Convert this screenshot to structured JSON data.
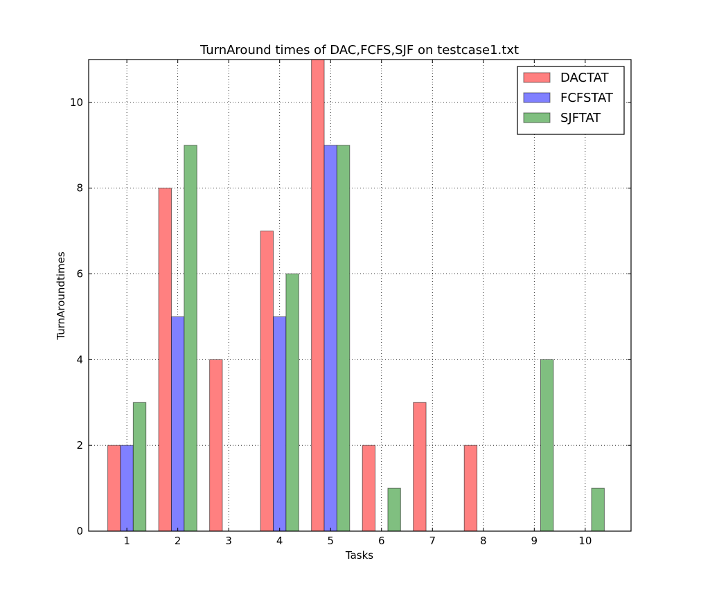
{
  "chart_data": {
    "type": "bar",
    "title": "TurnAround times of DAC,FCFS,SJF on testcase1.txt",
    "xlabel": "Tasks",
    "ylabel": "TurnAroundtimes",
    "categories": [
      "1",
      "2",
      "3",
      "4",
      "5",
      "6",
      "7",
      "8",
      "9",
      "10"
    ],
    "series": [
      {
        "name": "DACTAT",
        "color": "#ff8080",
        "values": [
          2,
          8,
          4,
          7,
          11,
          2,
          3,
          2,
          0,
          0
        ]
      },
      {
        "name": "FCFSTAT",
        "color": "#8080ff",
        "values": [
          2,
          5,
          0,
          5,
          9,
          0,
          0,
          0,
          0,
          0
        ]
      },
      {
        "name": "SJFTAT",
        "color": "#80bf80",
        "values": [
          3,
          9,
          0,
          6,
          9,
          1,
          0,
          0,
          4,
          1
        ]
      }
    ],
    "yticks": [
      0,
      2,
      4,
      6,
      8,
      10
    ],
    "ylim": [
      0,
      11
    ],
    "grid": true,
    "legend_position": "top-right"
  }
}
